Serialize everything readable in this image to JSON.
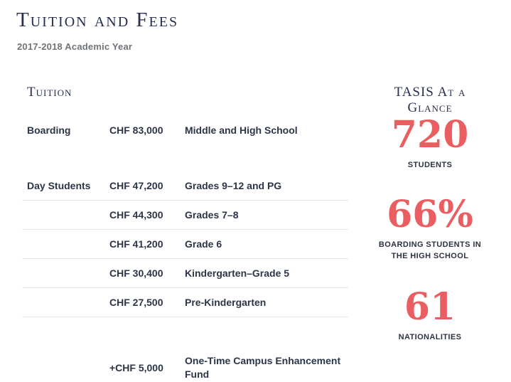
{
  "page": {
    "title": "Tuition and Fees",
    "subtitle": "2017-2018 Academic Year"
  },
  "tuition": {
    "heading": "Tuition",
    "rows": [
      {
        "label": "Boarding",
        "amount": "CHF 83,000",
        "desc": "Middle and High School"
      },
      {
        "label": "Day Students",
        "amount": "CHF 47,200",
        "desc": "Grades 9–12 and PG"
      },
      {
        "label": "",
        "amount": "CHF 44,300",
        "desc": "Grades 7–8"
      },
      {
        "label": "",
        "amount": "CHF 41,200",
        "desc": "Grade 6"
      },
      {
        "label": "",
        "amount": "CHF 30,400",
        "desc": "Kindergarten–Grade 5"
      },
      {
        "label": "",
        "amount": "CHF 27,500",
        "desc": "Pre-Kindergarten"
      },
      {
        "label": "",
        "amount": "+CHF 5,000",
        "desc": "One-Time Campus Enhancement Fund"
      }
    ]
  },
  "glance": {
    "heading": "TASIS At a Glance",
    "stats": [
      {
        "value": "720",
        "label": "STUDENTS"
      },
      {
        "value": "66%",
        "label": "BOARDING STUDENTS IN THE HIGH SCHOOL"
      },
      {
        "value": "61",
        "label": "NATIONALITIES"
      }
    ]
  },
  "colors": {
    "accent_red": "#ea5e62",
    "heading_navy": "#272e4f",
    "body_navy": "#2c3547",
    "subtitle_gray": "#6f7377",
    "divider_gray": "#e7e7e8"
  }
}
